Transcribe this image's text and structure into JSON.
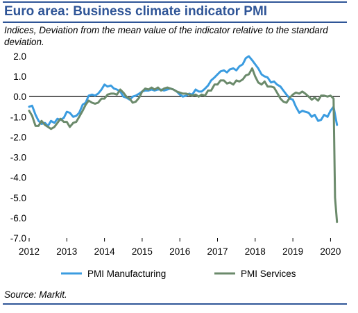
{
  "title": "Euro area: Business climate indicator PMI",
  "subtitle": "Indices, Deviation from the mean value of the indicator relative to the standard deviation.",
  "source": "Source: Markit.",
  "colors": {
    "manufacturing": "#3b9ce0",
    "services": "#6b8a6b",
    "accent": "#2f5597"
  },
  "chart_data": {
    "type": "line",
    "title": "Euro area: Business climate indicator PMI",
    "xlabel": "",
    "ylabel": "",
    "ylim": [
      -7.0,
      2.0
    ],
    "yticks": [
      "2.0",
      "1.0",
      "0.0",
      "-1.0",
      "-2.0",
      "-3.0",
      "-4.0",
      "-5.0",
      "-6.0",
      "-7.0"
    ],
    "xticks": [
      "2012",
      "2013",
      "2014",
      "2015",
      "2016",
      "2017",
      "2018",
      "2019",
      "2020"
    ],
    "legend_position": "bottom",
    "series": [
      {
        "name": "PMI Manufacturing",
        "color": "#3b9ce0",
        "x": [
          2012.0,
          2012.08,
          2012.17,
          2012.25,
          2012.33,
          2012.42,
          2012.5,
          2012.58,
          2012.67,
          2012.75,
          2012.83,
          2012.92,
          2013.0,
          2013.08,
          2013.17,
          2013.25,
          2013.33,
          2013.42,
          2013.5,
          2013.58,
          2013.67,
          2013.75,
          2013.83,
          2013.92,
          2014.0,
          2014.08,
          2014.17,
          2014.25,
          2014.33,
          2014.42,
          2014.5,
          2014.58,
          2014.67,
          2014.75,
          2014.83,
          2014.92,
          2015.0,
          2015.08,
          2015.17,
          2015.25,
          2015.33,
          2015.42,
          2015.5,
          2015.58,
          2015.67,
          2015.75,
          2015.83,
          2015.92,
          2016.0,
          2016.08,
          2016.17,
          2016.25,
          2016.33,
          2016.42,
          2016.5,
          2016.58,
          2016.67,
          2016.75,
          2016.83,
          2016.92,
          2017.0,
          2017.08,
          2017.17,
          2017.25,
          2017.33,
          2017.42,
          2017.5,
          2017.58,
          2017.67,
          2017.75,
          2017.83,
          2017.92,
          2018.0,
          2018.08,
          2018.17,
          2018.25,
          2018.33,
          2018.42,
          2018.5,
          2018.58,
          2018.67,
          2018.75,
          2018.83,
          2018.92,
          2019.0,
          2019.08,
          2019.17,
          2019.25,
          2019.33,
          2019.42,
          2019.5,
          2019.58,
          2019.67,
          2019.75,
          2019.83,
          2019.92,
          2020.0,
          2020.08,
          2020.17
        ],
        "values": [
          -0.5,
          -0.45,
          -0.9,
          -1.2,
          -1.35,
          -1.3,
          -1.45,
          -1.2,
          -1.3,
          -1.1,
          -1.15,
          -1.05,
          -0.75,
          -0.8,
          -1.0,
          -0.95,
          -0.8,
          -0.4,
          -0.3,
          0.05,
          0.1,
          0.05,
          0.15,
          0.35,
          0.6,
          0.5,
          0.55,
          0.4,
          0.35,
          0.25,
          0.0,
          -0.05,
          -0.15,
          0.0,
          0.05,
          0.15,
          0.25,
          0.3,
          0.3,
          0.35,
          0.3,
          0.35,
          0.35,
          0.3,
          0.35,
          0.4,
          0.35,
          0.25,
          0.1,
          0.0,
          0.05,
          0.15,
          0.1,
          0.35,
          0.25,
          0.25,
          0.4,
          0.55,
          0.8,
          0.95,
          1.1,
          1.25,
          1.3,
          1.2,
          1.35,
          1.4,
          1.3,
          1.5,
          1.6,
          1.9,
          2.0,
          1.8,
          1.6,
          1.4,
          1.1,
          1.0,
          0.95,
          0.7,
          0.75,
          0.6,
          0.5,
          0.3,
          0.1,
          -0.1,
          -0.15,
          -0.5,
          -0.8,
          -0.7,
          -0.75,
          -0.8,
          -1.0,
          -0.9,
          -1.2,
          -1.15,
          -0.9,
          -1.0,
          -0.7,
          -0.5,
          -1.4
        ]
      },
      {
        "name": "PMI Services",
        "color": "#6b8a6b",
        "x": [
          2012.0,
          2012.08,
          2012.17,
          2012.25,
          2012.33,
          2012.42,
          2012.5,
          2012.58,
          2012.67,
          2012.75,
          2012.83,
          2012.92,
          2013.0,
          2013.08,
          2013.17,
          2013.25,
          2013.33,
          2013.42,
          2013.5,
          2013.58,
          2013.67,
          2013.75,
          2013.83,
          2013.92,
          2014.0,
          2014.08,
          2014.17,
          2014.25,
          2014.33,
          2014.42,
          2014.5,
          2014.58,
          2014.67,
          2014.75,
          2014.83,
          2014.92,
          2015.0,
          2015.08,
          2015.17,
          2015.25,
          2015.33,
          2015.42,
          2015.5,
          2015.58,
          2015.67,
          2015.75,
          2015.83,
          2015.92,
          2016.0,
          2016.08,
          2016.17,
          2016.25,
          2016.33,
          2016.42,
          2016.5,
          2016.58,
          2016.67,
          2016.75,
          2016.83,
          2016.92,
          2017.0,
          2017.08,
          2017.17,
          2017.25,
          2017.33,
          2017.42,
          2017.5,
          2017.58,
          2017.67,
          2017.75,
          2017.83,
          2017.92,
          2018.0,
          2018.08,
          2018.17,
          2018.25,
          2018.33,
          2018.42,
          2018.5,
          2018.58,
          2018.67,
          2018.75,
          2018.83,
          2018.92,
          2019.0,
          2019.08,
          2019.17,
          2019.25,
          2019.33,
          2019.42,
          2019.5,
          2019.58,
          2019.67,
          2019.75,
          2019.83,
          2019.92,
          2020.0,
          2020.08,
          2020.12,
          2020.17
        ],
        "values": [
          -0.7,
          -0.95,
          -1.45,
          -1.45,
          -1.2,
          -1.4,
          -1.5,
          -1.6,
          -1.5,
          -1.3,
          -1.1,
          -1.25,
          -1.25,
          -1.5,
          -1.3,
          -1.25,
          -1.0,
          -0.7,
          -0.4,
          -0.2,
          -0.3,
          -0.35,
          -0.3,
          -0.1,
          -0.1,
          0.1,
          0.15,
          0.15,
          0.1,
          0.35,
          0.2,
          0.0,
          -0.1,
          -0.3,
          -0.25,
          -0.05,
          0.25,
          0.4,
          0.35,
          0.45,
          0.35,
          0.45,
          0.3,
          0.4,
          0.45,
          0.4,
          0.35,
          0.25,
          0.2,
          0.15,
          0.15,
          0.1,
          0.05,
          0.1,
          0.0,
          0.1,
          0.05,
          0.3,
          0.3,
          0.6,
          0.6,
          0.8,
          0.8,
          0.65,
          0.7,
          0.6,
          0.8,
          0.75,
          0.85,
          1.05,
          1.1,
          1.4,
          1.0,
          0.7,
          0.6,
          0.75,
          0.5,
          0.5,
          0.45,
          0.2,
          -0.1,
          -0.25,
          -0.3,
          -0.05,
          0.1,
          0.2,
          0.15,
          0.25,
          0.15,
          0.0,
          -0.15,
          -0.05,
          -0.2,
          0.05,
          0.05,
          0.0,
          0.05,
          -0.1,
          -5.0,
          -6.2
        ]
      }
    ]
  }
}
